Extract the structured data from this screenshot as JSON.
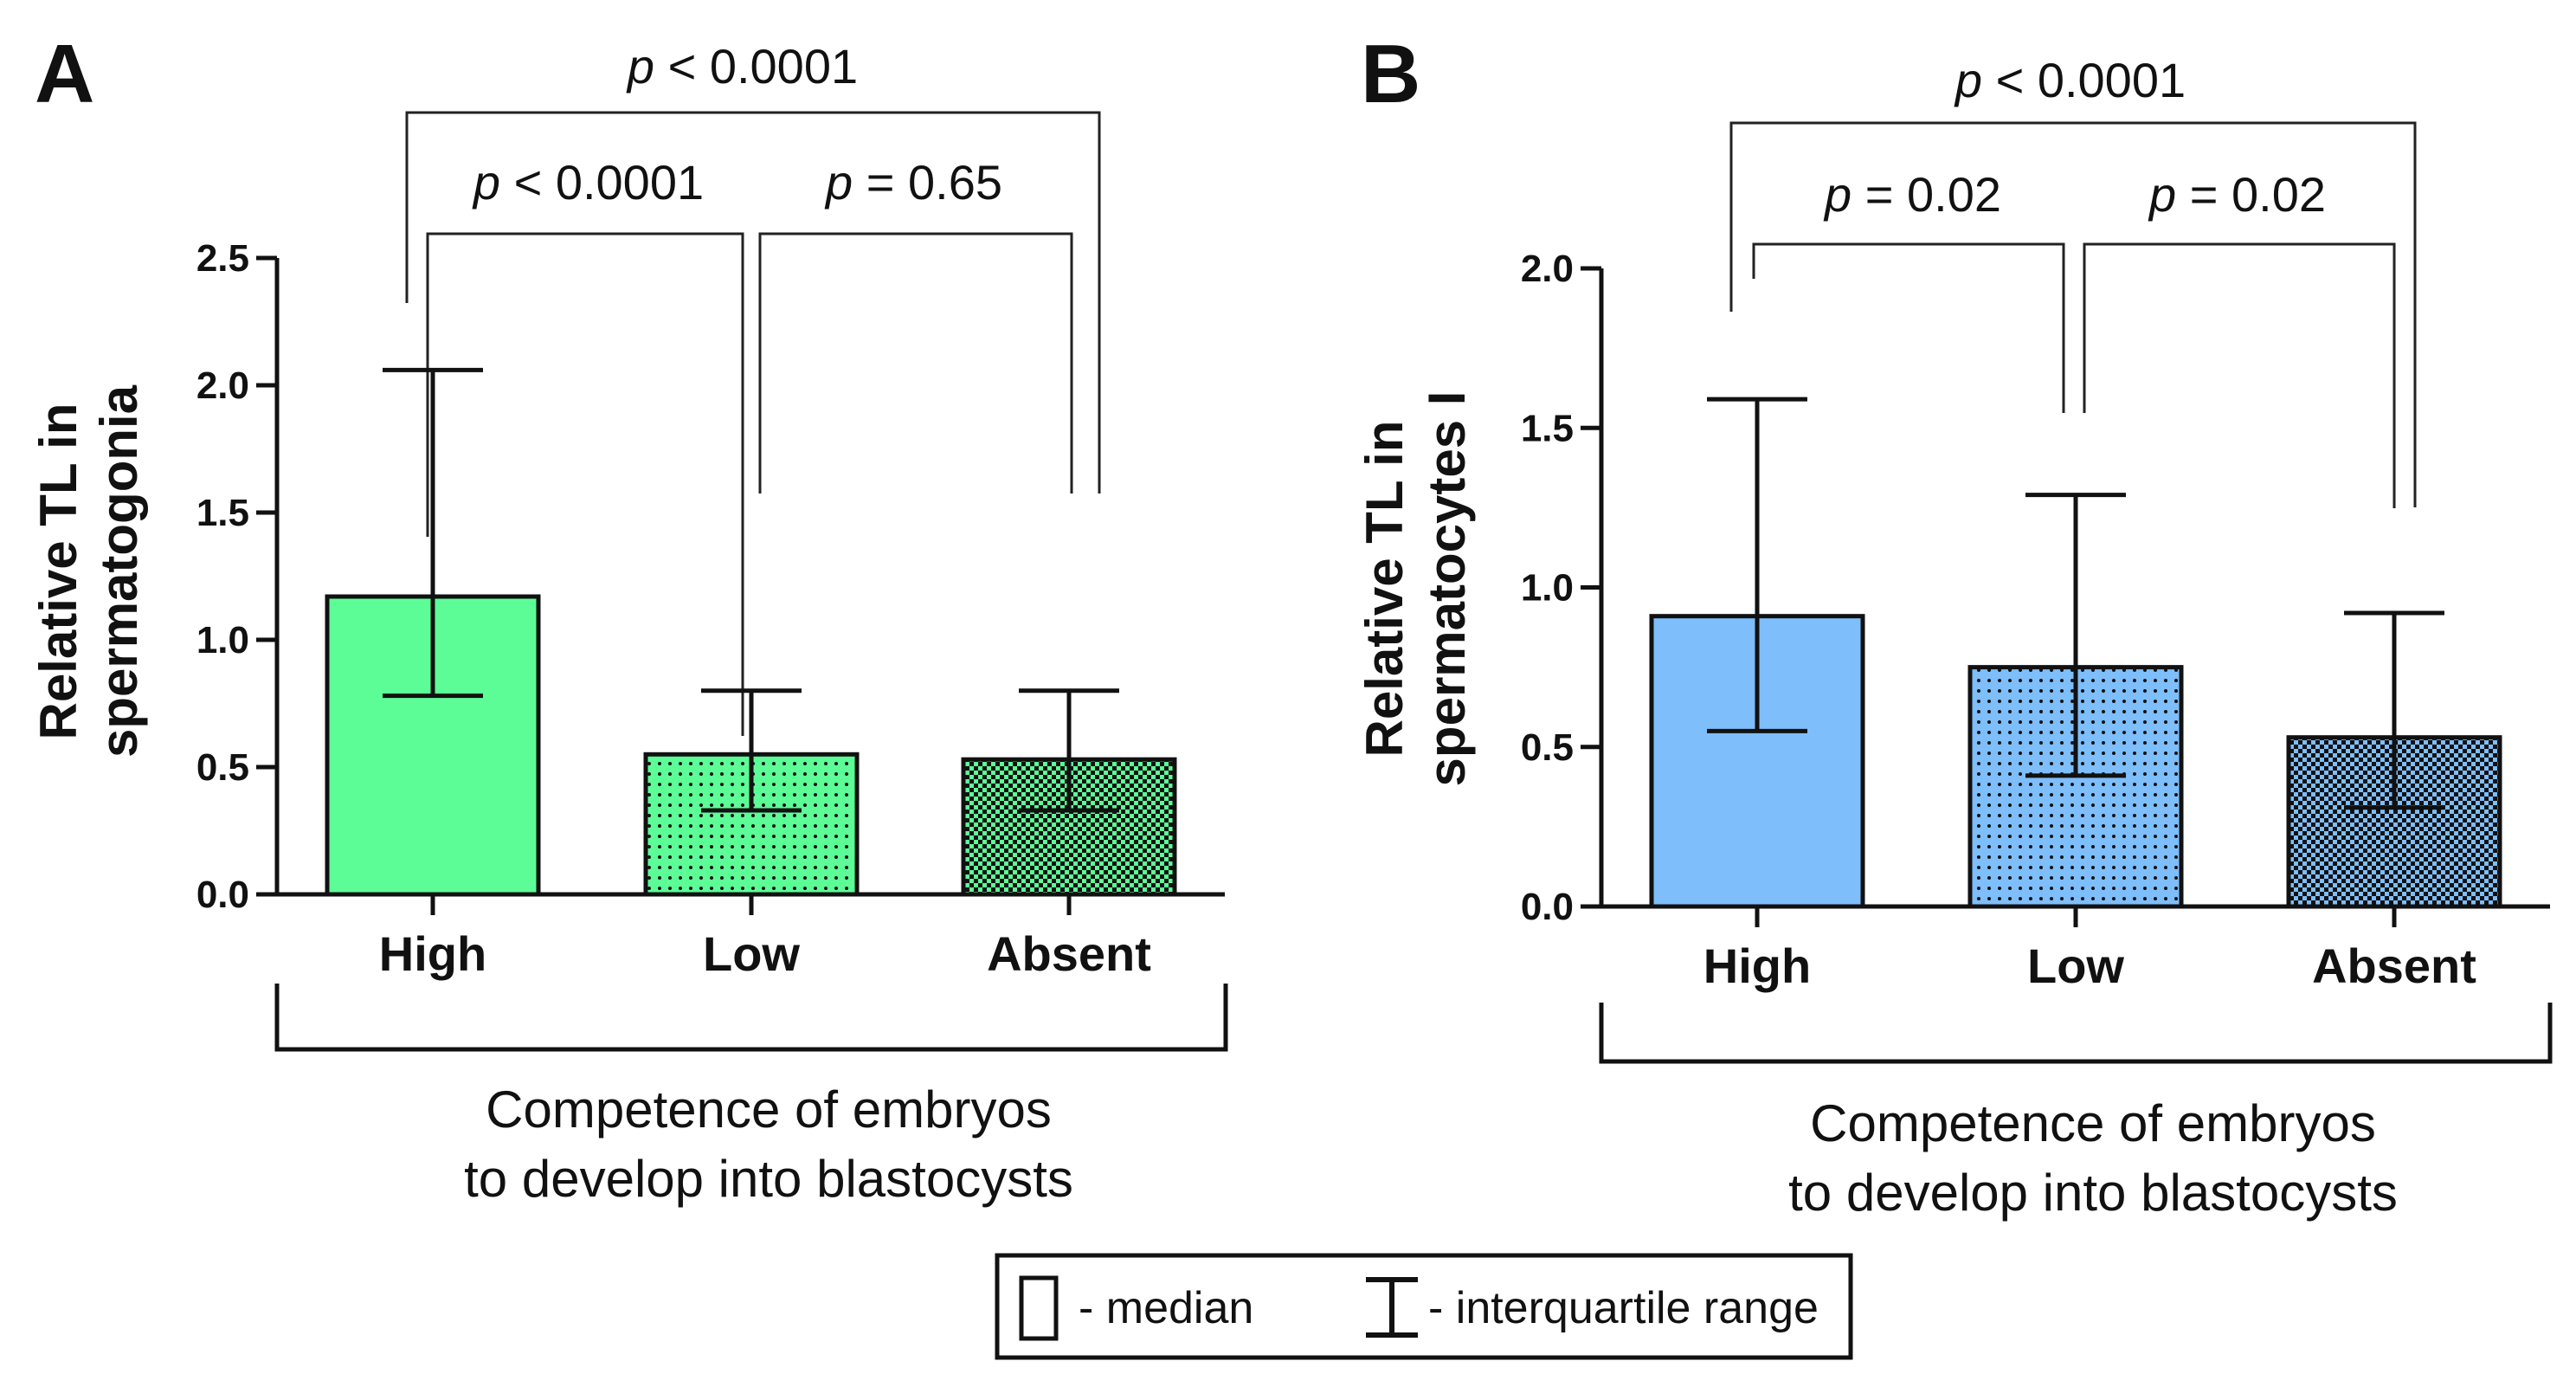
{
  "colors": {
    "panel_a_fill": "#5cfd97",
    "panel_b_fill": "#7dbefb",
    "ink": "#111111"
  },
  "chart_data": [
    {
      "type": "bar",
      "panel": "A",
      "categories": [
        "High",
        "Low",
        "Absent"
      ],
      "values": [
        1.17,
        0.55,
        0.53
      ],
      "iqr_low": [
        0.78,
        0.33,
        0.33
      ],
      "iqr_high": [
        2.06,
        0.8,
        0.8
      ],
      "patterns": [
        "solid",
        "dots",
        "checker"
      ],
      "ylabel_line1": "Relative TL in",
      "ylabel_line2": "spermatogonia",
      "xlabel_line1": "Competence of embryos",
      "xlabel_line2": "to develop into blastocysts",
      "ylim": [
        0,
        2.5
      ],
      "yticks": [
        "0.0",
        "0.5",
        "1.0",
        "1.5",
        "2.0",
        "2.5"
      ],
      "comparisons": [
        {
          "pair": [
            "High",
            "Low"
          ],
          "italic": "p",
          "rest": " < 0.0001"
        },
        {
          "pair": [
            "Low",
            "Absent"
          ],
          "italic": "p",
          "rest": " = 0.65"
        },
        {
          "pair": [
            "High",
            "Absent"
          ],
          "italic": "p",
          "rest": " < 0.0001"
        }
      ]
    },
    {
      "type": "bar",
      "panel": "B",
      "categories": [
        "High",
        "Low",
        "Absent"
      ],
      "values": [
        0.91,
        0.75,
        0.53
      ],
      "iqr_low": [
        0.55,
        0.41,
        0.31
      ],
      "iqr_high": [
        1.59,
        1.29,
        0.92
      ],
      "patterns": [
        "solid",
        "dots",
        "checker"
      ],
      "ylabel_line1": "Relative TL in",
      "ylabel_line2": "spermatocytes I",
      "xlabel_line1": "Competence of embryos",
      "xlabel_line2": "to develop into blastocysts",
      "ylim": [
        0,
        2.0
      ],
      "yticks": [
        "0.0",
        "0.5",
        "1.0",
        "1.5",
        "2.0"
      ],
      "comparisons": [
        {
          "pair": [
            "High",
            "Low"
          ],
          "italic": "p",
          "rest": " = 0.02"
        },
        {
          "pair": [
            "Low",
            "Absent"
          ],
          "italic": "p",
          "rest": " = 0.02"
        },
        {
          "pair": [
            "High",
            "Absent"
          ],
          "italic": "p",
          "rest": " < 0.0001"
        }
      ]
    }
  ],
  "legend": {
    "median_label": "- median",
    "iqr_label": "- interquartile range"
  }
}
